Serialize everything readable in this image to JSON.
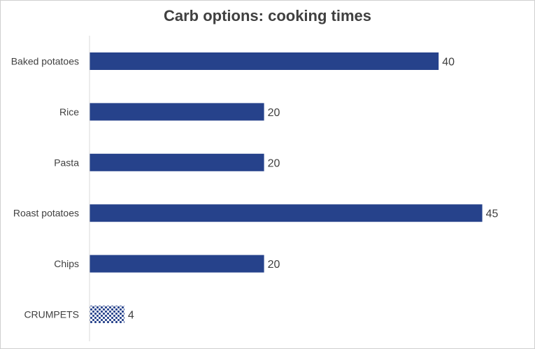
{
  "chart_data": {
    "type": "bar",
    "orientation": "horizontal",
    "title": "Carb options: cooking times",
    "xlabel": "",
    "ylabel": "",
    "categories": [
      "Baked potatoes",
      "Rice",
      "Pasta",
      "Roast potatoes",
      "Chips",
      "CRUMPETS"
    ],
    "values": [
      40,
      20,
      20,
      45,
      20,
      4
    ],
    "xlim": [
      0,
      50
    ],
    "grid": false,
    "legend": "none",
    "data_labels": true,
    "colors": {
      "bar": "#26428b",
      "highlight_pattern_fg": "#26428b",
      "highlight_pattern_bg": "#ffffff",
      "axis": "#d9d9d9",
      "text": "#404040"
    },
    "highlighted_category": "CRUMPETS"
  }
}
